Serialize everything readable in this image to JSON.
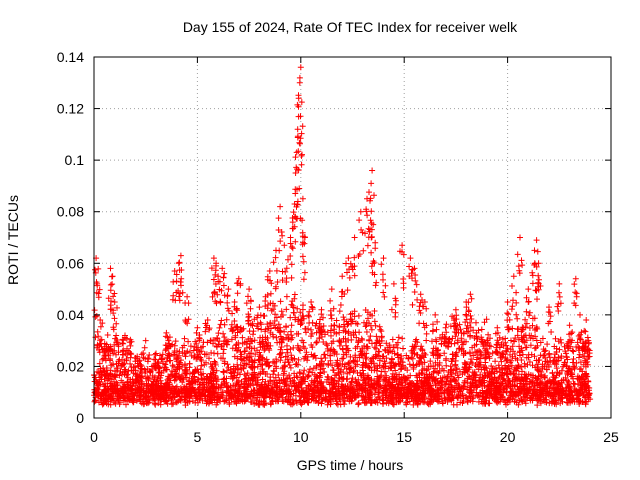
{
  "chart_data": {
    "type": "scatter",
    "title": "Day 155 of 2024, Rate Of TEC Index for receiver welk",
    "xlabel": "GPS time / hours",
    "ylabel": "ROTI / TECUs",
    "xlim": [
      0,
      25
    ],
    "ylim": [
      0,
      0.14
    ],
    "xticks": [
      0,
      5,
      10,
      15,
      20,
      25
    ],
    "xtick_labels": [
      "0",
      "5",
      "10",
      "15",
      "20",
      "25"
    ],
    "yticks": [
      0,
      0.02,
      0.04,
      0.06,
      0.08,
      0.1,
      0.12,
      0.14
    ],
    "ytick_labels": [
      "0",
      "0.02",
      "0.04",
      "0.06",
      "0.08",
      "0.1",
      "0.12",
      "0.14"
    ],
    "grid": true,
    "marker": "+",
    "color": "#ff0000",
    "series": [
      {
        "name": "ROTI",
        "x": [
          0.1,
          0.15,
          0.3,
          0.8,
          0.9,
          1.0,
          1.5,
          2.0,
          2.5,
          3.0,
          3.5,
          3.6,
          3.9,
          4.1,
          4.2,
          4.5,
          5.0,
          5.5,
          5.8,
          5.9,
          6.0,
          6.2,
          6.5,
          6.8,
          7.0,
          7.5,
          8.0,
          8.3,
          8.5,
          8.8,
          9.0,
          9.2,
          9.5,
          9.7,
          9.75,
          9.8,
          9.85,
          9.9,
          9.95,
          10.0,
          10.1,
          10.2,
          10.5,
          11.0,
          11.5,
          12.0,
          12.3,
          12.6,
          12.9,
          13.2,
          13.4,
          13.45,
          13.5,
          13.6,
          14.0,
          14.5,
          14.9,
          15.3,
          15.5,
          15.8,
          16.0,
          16.5,
          17.0,
          17.5,
          18.0,
          18.2,
          18.5,
          19.0,
          19.5,
          20.0,
          20.3,
          20.6,
          21.0,
          21.3,
          21.4,
          21.5,
          22.0,
          22.5,
          23.0,
          23.3,
          23.5,
          23.8,
          23.9
        ],
        "y": [
          0.062,
          0.052,
          0.038,
          0.058,
          0.055,
          0.045,
          0.032,
          0.022,
          0.03,
          0.025,
          0.033,
          0.03,
          0.057,
          0.06,
          0.063,
          0.047,
          0.035,
          0.038,
          0.062,
          0.059,
          0.055,
          0.058,
          0.05,
          0.045,
          0.054,
          0.05,
          0.043,
          0.047,
          0.057,
          0.065,
          0.082,
          0.067,
          0.07,
          0.083,
          0.095,
          0.103,
          0.112,
          0.124,
          0.13,
          0.136,
          0.085,
          0.07,
          0.045,
          0.042,
          0.05,
          0.055,
          0.062,
          0.07,
          0.08,
          0.085,
          0.091,
          0.096,
          0.075,
          0.068,
          0.062,
          0.052,
          0.067,
          0.062,
          0.058,
          0.048,
          0.045,
          0.04,
          0.035,
          0.042,
          0.045,
          0.048,
          0.033,
          0.028,
          0.035,
          0.045,
          0.055,
          0.07,
          0.05,
          0.065,
          0.069,
          0.06,
          0.043,
          0.052,
          0.036,
          0.054,
          0.04,
          0.038,
          0.03
        ]
      }
    ],
    "note": "Dense noise band of thousands of points between ~0.005 and ~0.035 TECU/s across 0-24 h is drawn procedurally; listed points are the visible peaks/outliers."
  }
}
